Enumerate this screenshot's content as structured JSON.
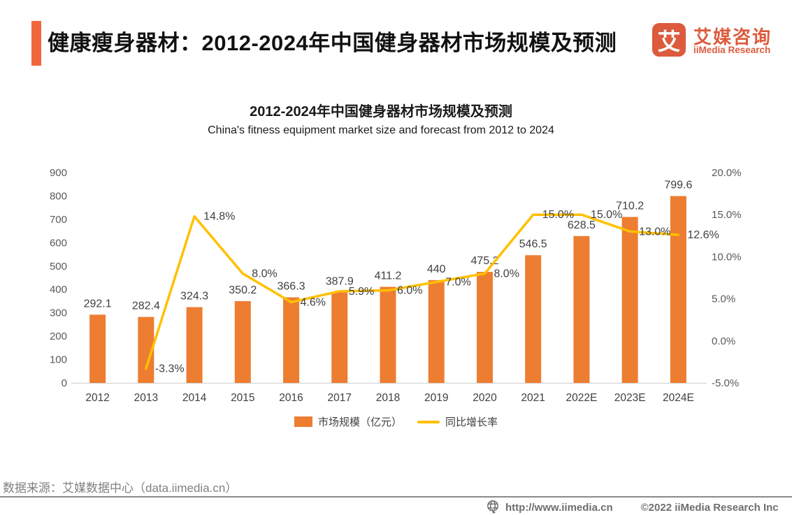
{
  "header": {
    "title": "健康瘦身器材：2012-2024年中国健身器材市场规模及预测",
    "logo": {
      "mark": "艾",
      "name_cn": "艾媒咨询",
      "name_en": "iiMedia Research"
    }
  },
  "chart_data": {
    "type": "bar+line combo",
    "title": "2012-2024年中国健身器材市场规模及预测",
    "subtitle": "China's fitness equipment market size and forecast from 2012 to 2024",
    "categories": [
      "2012",
      "2013",
      "2014",
      "2015",
      "2016",
      "2017",
      "2018",
      "2019",
      "2020",
      "2021",
      "2022E",
      "2023E",
      "2024E"
    ],
    "series": [
      {
        "name": "市场规模（亿元）",
        "type": "bar",
        "axis": "left",
        "color": "#ED7D31",
        "values": [
          292.1,
          282.4,
          324.3,
          350.2,
          366.3,
          387.9,
          411.2,
          440,
          475.2,
          546.5,
          628.5,
          710.2,
          799.6
        ],
        "labels": [
          "292.1",
          "282.4",
          "324.3",
          "350.2",
          "366.3",
          "387.9",
          "411.2",
          "440",
          "475.2",
          "546.5",
          "628.5",
          "710.2",
          "799.6"
        ]
      },
      {
        "name": "同比增长率",
        "type": "line",
        "axis": "right",
        "color": "#FFC000",
        "values": [
          null,
          -3.3,
          14.8,
          8.0,
          4.6,
          5.9,
          6.0,
          7.0,
          8.0,
          15.0,
          15.0,
          13.0,
          12.6
        ],
        "labels": [
          null,
          "-3.3%",
          "14.8%",
          "8.0%",
          "4.6%",
          "5.9%",
          "6.0%",
          "7.0%",
          "8.0%",
          "15.0%",
          "15.0%",
          "13.0%",
          "12.6%"
        ]
      }
    ],
    "left_axis": {
      "min": 0,
      "max": 900,
      "step": 100
    },
    "right_axis": {
      "min": -5,
      "max": 20,
      "step": 5,
      "ticks": [
        "-5.0%",
        "0.0%",
        "5.0%",
        "10.0%",
        "15.0%",
        "20.0%"
      ]
    },
    "grid": false,
    "legend_position": "bottom"
  },
  "footer": {
    "source": "数据来源：艾媒数据中心（data.iimedia.cn）",
    "website": "http://www.iimedia.cn",
    "copyright": "©2022 iiMedia Research Inc"
  },
  "theme": {
    "accent_orange": "#F2663B",
    "logo_orange": "#DC5B3D",
    "bar_orange": "#ED7D31",
    "line_yellow": "#FFC000",
    "label_gray": "#404040",
    "axis_gray": "#595959",
    "footer_gray": "#808080"
  }
}
